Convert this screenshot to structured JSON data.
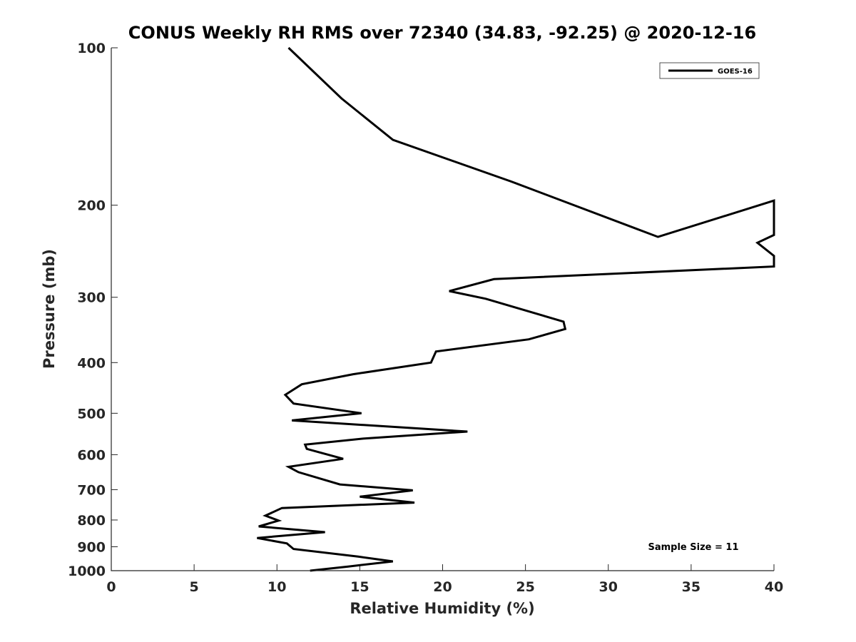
{
  "chart_data": {
    "type": "line",
    "title": "CONUS Weekly RH RMS over 72340 (34.83, -92.25) @ 2020-12-16",
    "xlabel": "Relative Humidity (%)",
    "ylabel": "Pressure (mb)",
    "xlim": [
      0,
      40
    ],
    "ylim": [
      100,
      1000
    ],
    "yscale": "log",
    "yreversed": true,
    "grid": false,
    "legend_position": "top-right",
    "x_ticks": [
      0,
      5,
      10,
      15,
      20,
      25,
      30,
      35,
      40
    ],
    "x_tick_labels": [
      "0",
      "5",
      "10",
      "15",
      "20",
      "25",
      "30",
      "35",
      "40"
    ],
    "y_ticks": [
      100,
      200,
      300,
      400,
      500,
      600,
      700,
      800,
      900,
      1000
    ],
    "y_tick_labels": [
      "100",
      "200",
      "300",
      "400",
      "500",
      "600",
      "700",
      "800",
      "900",
      "1000"
    ],
    "annotation": "Sample Size = 11",
    "series": [
      {
        "name": "GOES-16",
        "color": "#000000",
        "points": [
          [
            10.7,
            100
          ],
          [
            13.9,
            125
          ],
          [
            17.0,
            150
          ],
          [
            24.1,
            180
          ],
          [
            33.0,
            230
          ],
          [
            40.0,
            196
          ],
          [
            40.0,
            228
          ],
          [
            39.0,
            236
          ],
          [
            40.0,
            250
          ],
          [
            40.0,
            262
          ],
          [
            23.1,
            277
          ],
          [
            20.4,
            292
          ],
          [
            22.6,
            302
          ],
          [
            27.3,
            334
          ],
          [
            27.4,
            345
          ],
          [
            25.2,
            361
          ],
          [
            19.6,
            381
          ],
          [
            19.3,
            400
          ],
          [
            14.6,
            421
          ],
          [
            11.5,
            440
          ],
          [
            10.5,
            461
          ],
          [
            11.0,
            479
          ],
          [
            15.1,
            500
          ],
          [
            10.9,
            516
          ],
          [
            21.5,
            542
          ],
          [
            15.2,
            559
          ],
          [
            11.7,
            574
          ],
          [
            11.8,
            585
          ],
          [
            14.0,
            611
          ],
          [
            10.7,
            633
          ],
          [
            11.3,
            648
          ],
          [
            13.8,
            684
          ],
          [
            18.2,
            702
          ],
          [
            15.0,
            722
          ],
          [
            18.3,
            741
          ],
          [
            10.3,
            759
          ],
          [
            9.3,
            785
          ],
          [
            10.1,
            802
          ],
          [
            8.9,
            823
          ],
          [
            12.9,
            844
          ],
          [
            8.8,
            866
          ],
          [
            10.6,
            887
          ],
          [
            11.0,
            909
          ],
          [
            14.9,
            940
          ],
          [
            17.0,
            960
          ],
          [
            14.3,
            982
          ],
          [
            12.0,
            1000
          ]
        ]
      }
    ]
  }
}
